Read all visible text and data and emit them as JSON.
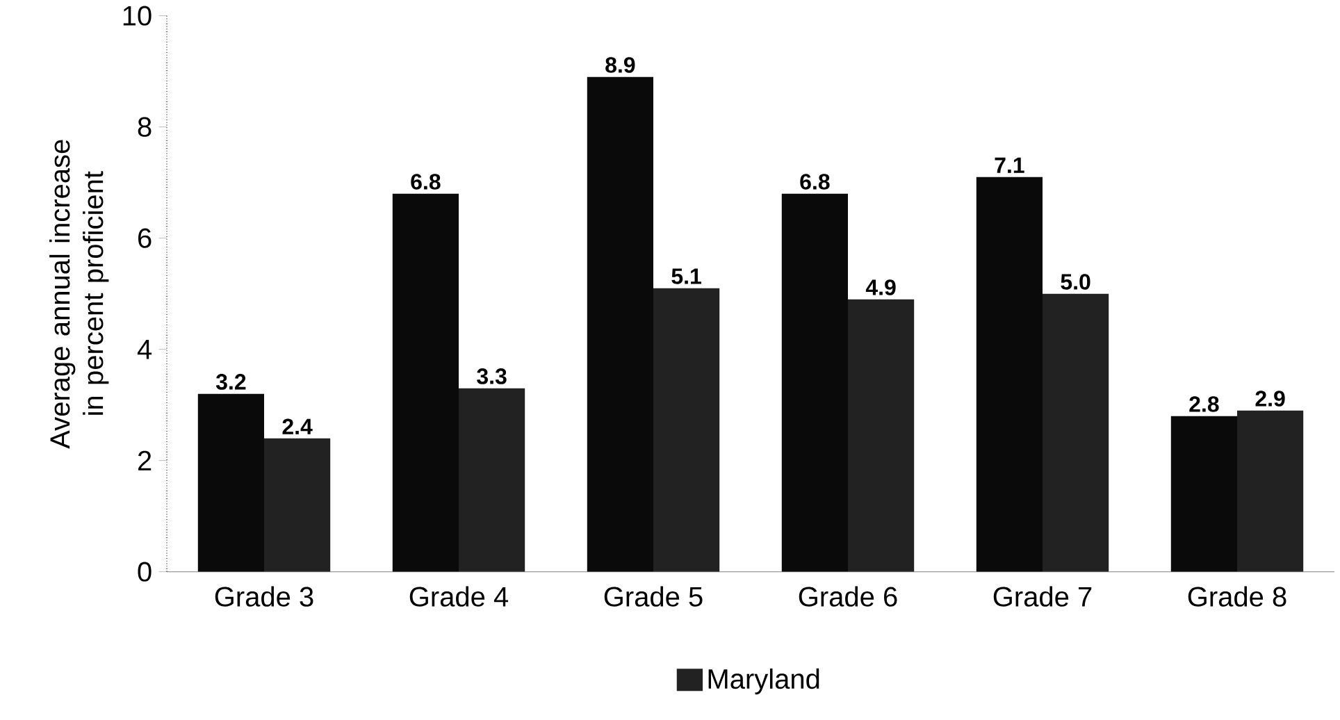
{
  "chart_data": {
    "type": "bar",
    "ylabel": "Average annual increase in percent proficient",
    "categories": [
      "Grade 3",
      "Grade 4",
      "Grade 5",
      "Grade 6",
      "Grade 7",
      "Grade 8"
    ],
    "series": [
      {
        "color": "#0a0a0a",
        "values": [
          3.2,
          6.8,
          8.9,
          6.8,
          7.1,
          2.8
        ],
        "value_labels": [
          "3.2",
          "6.8",
          "8.9",
          "6.8",
          "7.1",
          "2.8"
        ]
      },
      {
        "name": "Maryland",
        "color": "#222222",
        "values": [
          2.4,
          3.3,
          5.1,
          4.9,
          5.0,
          2.9
        ],
        "value_labels": [
          "2.4",
          "3.3",
          "5.1",
          "4.9",
          "5.0",
          "2.9"
        ]
      }
    ],
    "ylim": [
      0,
      10
    ],
    "yticks": [
      0,
      2,
      4,
      6,
      8,
      10
    ],
    "legend": "bottom"
  }
}
